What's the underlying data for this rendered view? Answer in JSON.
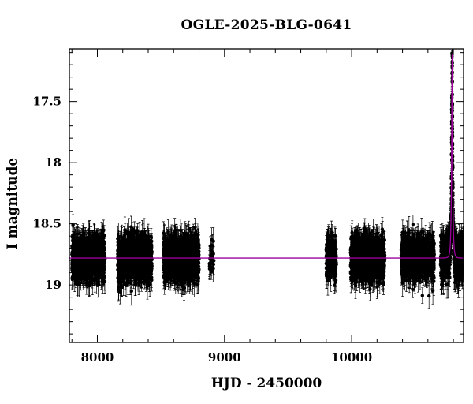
{
  "chart_data": {
    "type": "scatter",
    "title": "OGLE-2025-BLG-0641",
    "xlabel": "HJD - 2450000",
    "ylabel": "I magnitude",
    "xlim": [
      7780,
      10880
    ],
    "ylim": [
      19.47,
      17.07
    ],
    "y_inverted": true,
    "x_major_ticks": [
      8000,
      9000,
      10000
    ],
    "x_minor_step": 200,
    "y_major_ticks": [
      17.5,
      18,
      18.5,
      19
    ],
    "y_minor_step": 0.1,
    "x_tick_labels": [
      "8000",
      "9000",
      "10000"
    ],
    "y_tick_labels": [
      "17.5",
      "18",
      "18.5",
      "19"
    ],
    "baseline_mag": 18.78,
    "seasons": [
      {
        "start": 7800,
        "end": 8060,
        "n": 1100
      },
      {
        "start": 8160,
        "end": 8430,
        "n": 1100
      },
      {
        "start": 8520,
        "end": 8800,
        "n": 1100
      },
      {
        "start": 8880,
        "end": 8920,
        "n": 25
      },
      {
        "start": 9800,
        "end": 9880,
        "n": 220
      },
      {
        "start": 9990,
        "end": 10260,
        "n": 900
      },
      {
        "start": 10390,
        "end": 10650,
        "n": 900
      },
      {
        "start": 10700,
        "end": 10875,
        "n": 700
      }
    ],
    "scatter_sigma_mag": 0.09,
    "errorbar_mag": 0.09,
    "model": {
      "name": "PSPL fit",
      "color": "#9b009b",
      "t0": 10790,
      "tE": 9,
      "u0": 0.22,
      "baseline": 18.78
    },
    "grid": false,
    "legend": "none"
  },
  "colors": {
    "data_points": "#000000",
    "model_line": "#9b009b",
    "frame": "#000000",
    "background": "#ffffff"
  }
}
